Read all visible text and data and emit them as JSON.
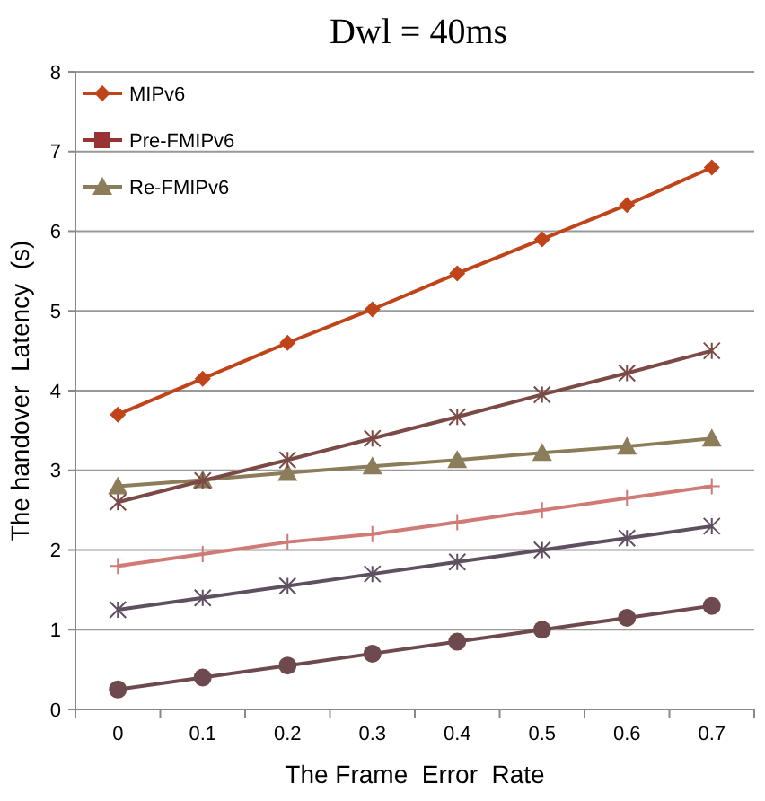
{
  "chart_data": {
    "type": "line",
    "title": "Dwl = 40ms",
    "xlabel": "The Frame  Error  Rate",
    "ylabel": "The handover  Latency  (s)",
    "categories": [
      "0",
      "0.1",
      "0.2",
      "0.3",
      "0.4",
      "0.5",
      "0.6",
      "0.7"
    ],
    "series": [
      {
        "name": "MIPv6",
        "color": "#c0441a",
        "marker": "diamond",
        "values": [
          3.7,
          4.15,
          4.6,
          5.02,
          5.47,
          5.9,
          6.33,
          6.8
        ]
      },
      {
        "name": "Pre-FMIPv6",
        "color": "#993333",
        "marker": "square",
        "values": [
          null,
          null,
          null,
          null,
          null,
          null,
          null,
          null
        ]
      },
      {
        "name": "Re-FMIPv6",
        "color": "#8b7d5a",
        "marker": "triangle",
        "values": [
          2.8,
          2.88,
          2.97,
          3.05,
          3.13,
          3.22,
          3.3,
          3.4
        ]
      },
      {
        "color": "#7b4a46",
        "marker": "cross",
        "values": [
          2.6,
          2.87,
          3.13,
          3.4,
          3.67,
          3.95,
          4.22,
          4.5
        ]
      },
      {
        "color": "#d07a76",
        "marker": "plus",
        "values": [
          1.8,
          1.95,
          2.1,
          2.2,
          2.35,
          2.5,
          2.65,
          2.8
        ]
      },
      {
        "color": "#5e5060",
        "marker": "cross",
        "values": [
          1.25,
          1.4,
          1.55,
          1.7,
          1.85,
          2.0,
          2.15,
          2.3
        ]
      },
      {
        "color": "#6e4a4e",
        "marker": "circle",
        "values": [
          0.25,
          0.4,
          0.55,
          0.7,
          0.85,
          1.0,
          1.15,
          1.3
        ]
      }
    ],
    "ylim": [
      0,
      8
    ],
    "yticks": [
      0,
      1,
      2,
      3,
      4,
      5,
      6,
      7,
      8
    ],
    "grid": "y",
    "legend": "top left"
  }
}
